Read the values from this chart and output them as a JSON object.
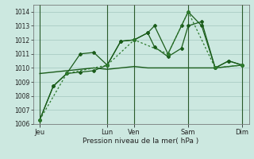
{
  "background_color": "#cce8e0",
  "grid_color": "#aaccc4",
  "line_color_solid": "#1a5c1a",
  "line_color_dotted": "#2d7a2d",
  "xlabel_text": "Pression niveau de la mer( hPa )",
  "ylim": [
    1006,
    1014.5
  ],
  "yticks": [
    1006,
    1007,
    1008,
    1009,
    1010,
    1011,
    1012,
    1013,
    1014
  ],
  "xlim": [
    0,
    16
  ],
  "day_labels": [
    "Jeu",
    "Lun",
    "Ven",
    "Sam",
    "Dim"
  ],
  "day_positions": [
    0.5,
    5.5,
    7.5,
    11.5,
    15.5
  ],
  "vline_positions": [
    0.5,
    5.5,
    7.5,
    11.5,
    15.5
  ],
  "series1_x": [
    0.5,
    1.5,
    2.5,
    3.5,
    4.5,
    5.5,
    6.5,
    7.5,
    8.5,
    9.0,
    10.0,
    11.0,
    11.5,
    12.5,
    13.5,
    14.5,
    15.5
  ],
  "series1_y": [
    1006.3,
    1008.7,
    1009.6,
    1011.0,
    1011.1,
    1010.2,
    1011.9,
    1012.0,
    1012.5,
    1011.5,
    1010.8,
    1011.4,
    1013.0,
    1013.3,
    1010.0,
    1010.5,
    1010.2
  ],
  "series2_x": [
    0.5,
    1.5,
    2.5,
    3.5,
    4.5,
    5.5,
    6.5,
    7.5,
    8.5,
    9.0,
    10.0,
    11.0,
    11.5,
    12.5,
    13.5,
    14.5,
    15.5
  ],
  "series2_y": [
    1006.3,
    1008.7,
    1009.6,
    1009.7,
    1009.8,
    1010.2,
    1011.9,
    1012.0,
    1012.5,
    1013.0,
    1011.0,
    1013.0,
    1014.0,
    1013.0,
    1010.0,
    1010.5,
    1010.2
  ],
  "series3_x": [
    0.5,
    1.5,
    2.5,
    3.5,
    4.5,
    5.5,
    6.5,
    7.5,
    8.5,
    9.0,
    10.0,
    11.0,
    11.5,
    12.5,
    13.5,
    14.5,
    15.5
  ],
  "series3_y": [
    1009.6,
    1009.7,
    1009.8,
    1009.9,
    1010.0,
    1009.9,
    1010.0,
    1010.1,
    1010.0,
    1010.0,
    1010.0,
    1010.0,
    1010.0,
    1010.0,
    1010.0,
    1010.1,
    1010.2
  ],
  "series4_x": [
    0.5,
    2.5,
    5.5,
    7.5,
    10.0,
    11.5,
    13.5,
    15.5
  ],
  "series4_y": [
    1006.3,
    1009.6,
    1010.2,
    1012.0,
    1011.0,
    1014.0,
    1010.0,
    1010.2
  ]
}
